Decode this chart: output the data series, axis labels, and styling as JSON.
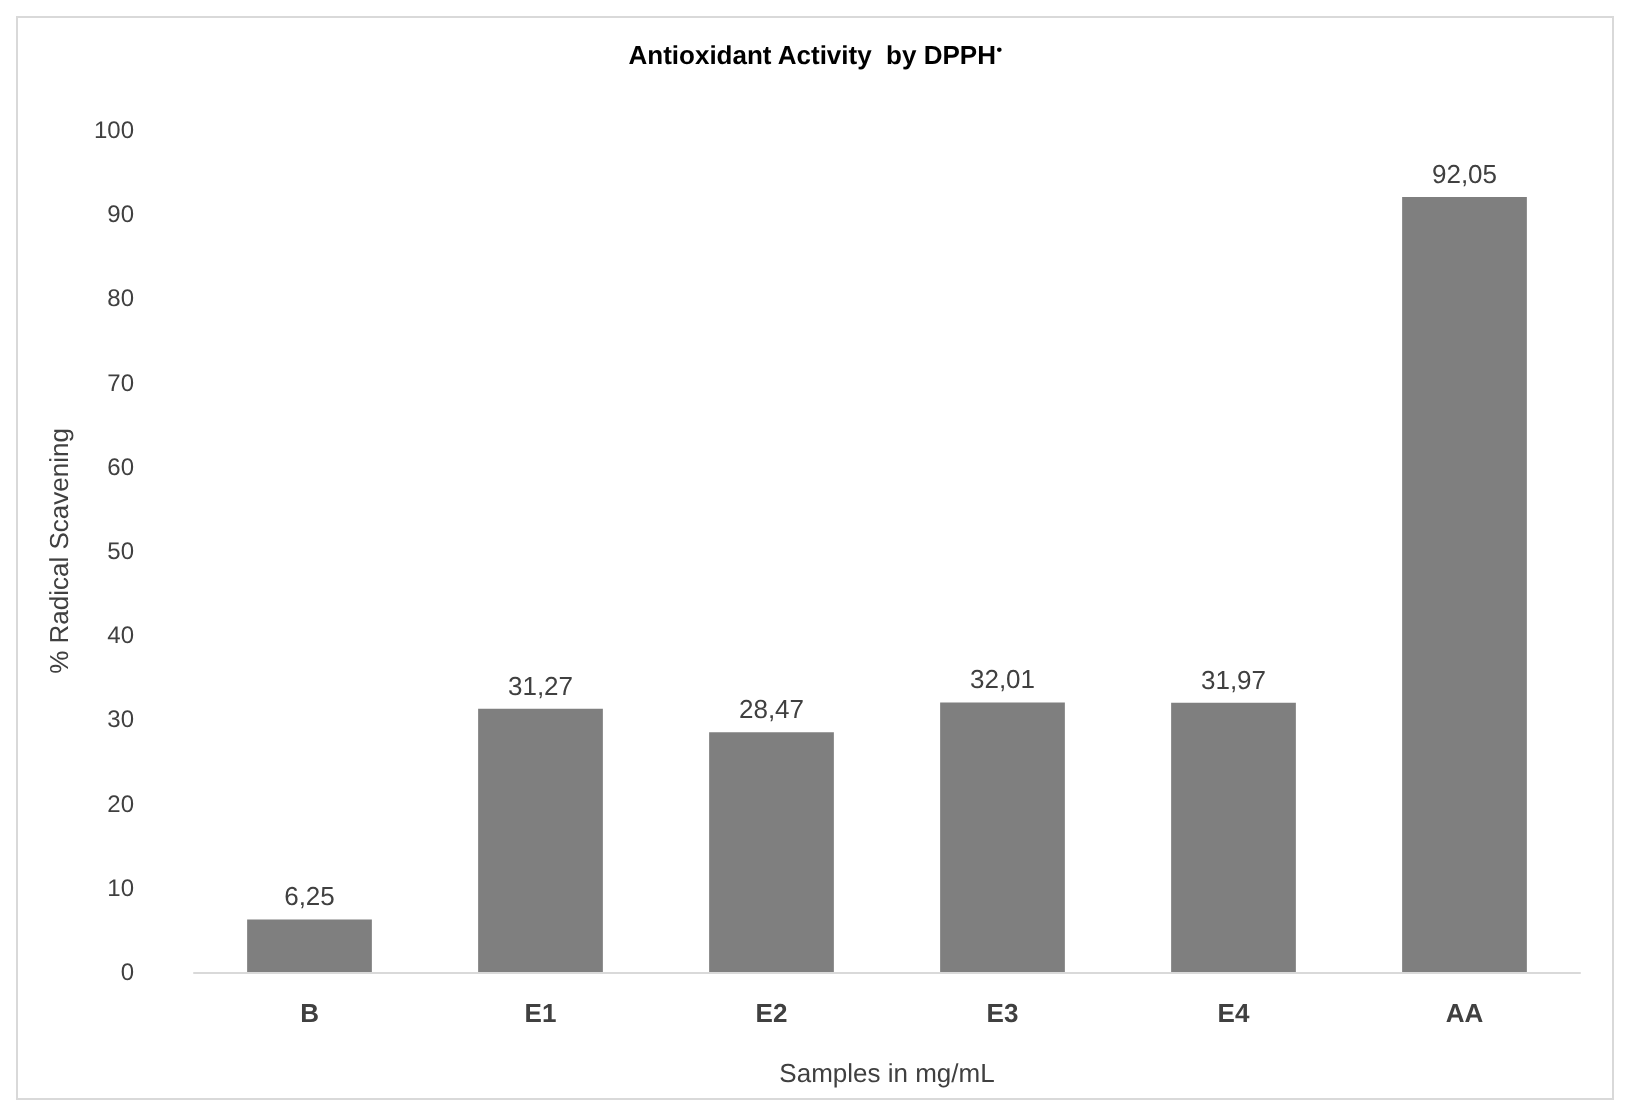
{
  "chart_data": {
    "type": "bar",
    "title": "Antioxidant Activity  by DPPH$^{•}$",
    "xlabel": "Samples in mg/mL",
    "ylabel": "% Radical Scavening",
    "categories": [
      "B",
      "E1",
      "E2",
      "E3",
      "E4",
      "AA"
    ],
    "values": [
      6.25,
      31.27,
      28.47,
      32.01,
      31.97,
      92.05
    ],
    "value_labels": [
      "6,25",
      "31,27",
      "28,47",
      "32,01",
      "31,97",
      "92,05"
    ],
    "color": "#7f7f7f",
    "ylim": [
      0,
      100
    ],
    "yticks": [
      0,
      10,
      20,
      30,
      40,
      50,
      60,
      70,
      80,
      90,
      100
    ],
    "grid": false
  }
}
